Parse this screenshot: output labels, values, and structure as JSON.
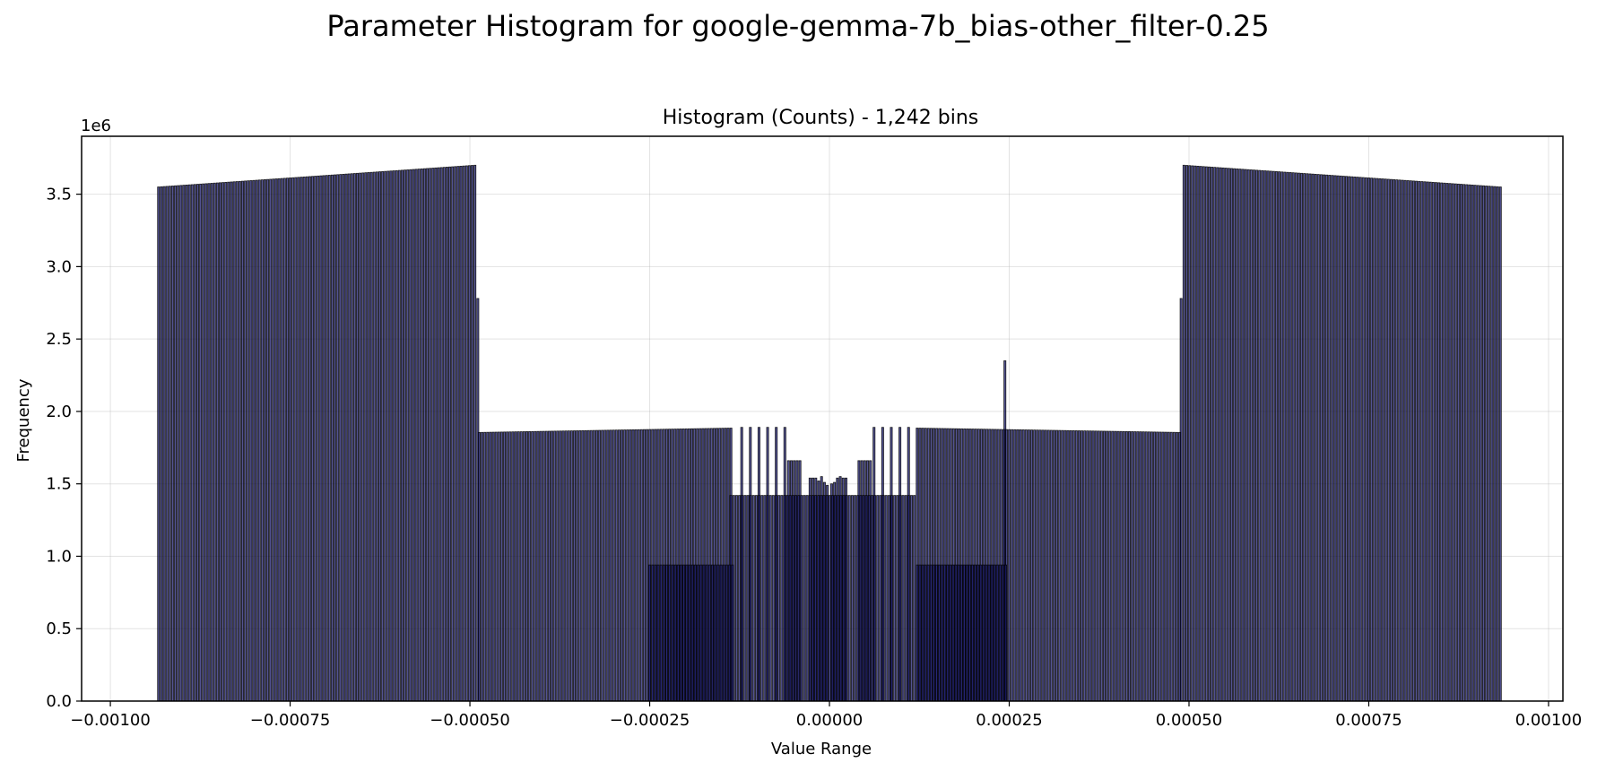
{
  "chart_data": {
    "type": "bar",
    "title": "Parameter Histogram for google-gemma-7b_bias-other_filter-0.25",
    "subtitle": "Histogram (Counts) - 1,242 bins",
    "xlabel": "Value Range",
    "ylabel": "Frequency",
    "y_offset_label": "1e6",
    "xlim": [
      -0.00104,
      0.00102
    ],
    "ylim": [
      0,
      3.9
    ],
    "xticks": [
      -0.001,
      -0.00075,
      -0.0005,
      -0.00025,
      0.0,
      0.00025,
      0.0005,
      0.00075,
      0.001
    ],
    "xtick_labels": [
      "−0.00100",
      "−0.00075",
      "−0.00050",
      "−0.00025",
      "0.00000",
      "0.00025",
      "0.00050",
      "0.00075",
      "0.00100"
    ],
    "yticks": [
      0.0,
      0.5,
      1.0,
      1.5,
      2.0,
      2.5,
      3.0,
      3.5
    ],
    "ytick_labels": [
      "0.0",
      "0.5",
      "1.0",
      "1.5",
      "2.0",
      "2.5",
      "3.0",
      "3.5"
    ],
    "grid": true,
    "bar_color": "#1a1a6e",
    "edge_color": "#000000",
    "series": [
      {
        "segments": [
          {
            "x_start": -0.000933,
            "x_end": -0.000493,
            "step": 3.9e-06,
            "y_start": 3.55,
            "y_end": 3.7
          },
          {
            "x": -0.000489,
            "y": 2.78
          },
          {
            "x_start": -0.000487,
            "x_end": -0.000137,
            "step": 3.9e-06,
            "y_start": 1.855,
            "y_end": 1.885
          },
          {
            "x_start": -0.000137,
            "x_end": 0.000118,
            "step": 3.9e-06,
            "y_start": 1.42,
            "y_end": 1.42
          },
          {
            "x_start": -0.00025,
            "x_end": -0.000135,
            "step": 3.9e-06,
            "y_start": 0.94,
            "y_end": 0.94
          },
          {
            "x_start": 0.000122,
            "x_end": 0.000245,
            "step": 3.9e-06,
            "y_start": 0.94,
            "y_end": 0.94
          },
          {
            "x_start": 0.000122,
            "x_end": 0.000487,
            "step": 3.9e-06,
            "y_start": 1.885,
            "y_end": 1.855
          },
          {
            "x": 0.000244,
            "y": 2.35
          },
          {
            "x": 0.000489,
            "y": 2.78
          },
          {
            "x_start": 0.000493,
            "x_end": 0.000933,
            "step": 3.9e-06,
            "y_start": 3.7,
            "y_end": 3.55
          }
        ],
        "sparse_points": [
          {
            "x": -0.000122,
            "y": 1.89
          },
          {
            "x": -0.00011,
            "y": 1.89
          },
          {
            "x": -9.8e-05,
            "y": 1.89
          },
          {
            "x": -8.6e-05,
            "y": 1.89
          },
          {
            "x": -7.4e-05,
            "y": 1.89
          },
          {
            "x": -6.2e-05,
            "y": 1.89
          },
          {
            "x": -5.7e-05,
            "y": 1.66
          },
          {
            "x": -5.3e-05,
            "y": 1.66
          },
          {
            "x": -4.9e-05,
            "y": 1.66
          },
          {
            "x": -4.5e-05,
            "y": 1.66
          },
          {
            "x": -4.1e-05,
            "y": 1.66
          },
          {
            "x": -2.7e-05,
            "y": 1.54
          },
          {
            "x": -2.3e-05,
            "y": 1.54
          },
          {
            "x": -1.9e-05,
            "y": 1.54
          },
          {
            "x": -1.5e-05,
            "y": 1.52
          },
          {
            "x": -1.1e-05,
            "y": 1.55
          },
          {
            "x": -7e-06,
            "y": 1.51
          },
          {
            "x": -3e-06,
            "y": 1.49
          },
          {
            "x": 3e-06,
            "y": 1.5
          },
          {
            "x": 7e-06,
            "y": 1.51
          },
          {
            "x": 1.1e-05,
            "y": 1.54
          },
          {
            "x": 1.5e-05,
            "y": 1.55
          },
          {
            "x": 1.9e-05,
            "y": 1.54
          },
          {
            "x": 2.3e-05,
            "y": 1.54
          },
          {
            "x": 4.1e-05,
            "y": 1.66
          },
          {
            "x": 4.5e-05,
            "y": 1.66
          },
          {
            "x": 4.9e-05,
            "y": 1.66
          },
          {
            "x": 5.3e-05,
            "y": 1.66
          },
          {
            "x": 5.7e-05,
            "y": 1.66
          },
          {
            "x": 6.2e-05,
            "y": 1.89
          },
          {
            "x": 7.4e-05,
            "y": 1.89
          },
          {
            "x": 8.6e-05,
            "y": 1.89
          },
          {
            "x": 9.8e-05,
            "y": 1.89
          },
          {
            "x": 0.00011,
            "y": 1.89
          }
        ]
      }
    ]
  }
}
